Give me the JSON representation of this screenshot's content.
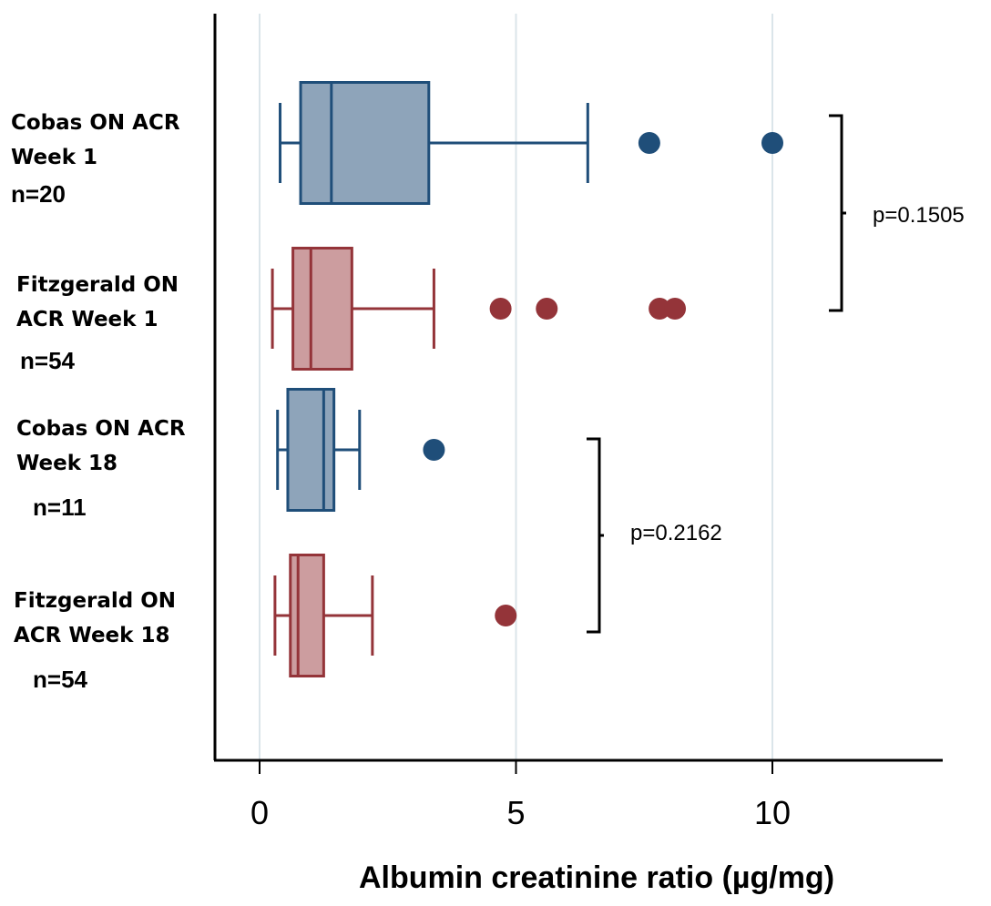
{
  "chart_data": {
    "type": "boxplot",
    "orientation": "horizontal",
    "title": "",
    "xlabel": "Albumin creatinine ratio (µg/mg)",
    "ylabel": "",
    "xlim": [
      -0.85,
      13.3
    ],
    "xticks": [
      0,
      5,
      10
    ],
    "grid": true,
    "colors": {
      "cobas_stroke": "#1f4e79",
      "cobas_fill": "#8ea4ba",
      "fitzgerald_stroke": "#943439",
      "fitzgerald_fill": "#cc9d9f",
      "grid": "#dbe5ea"
    },
    "categories": [
      {
        "label_lines": [
          "Cobas ON ACR",
          "Week 1"
        ],
        "n": "n=20",
        "color_key": "cobas",
        "whisker_low": 0.4,
        "q1": 0.8,
        "median": 1.4,
        "q3": 3.3,
        "whisker_high": 6.4,
        "outliers": [
          7.6,
          10.0
        ]
      },
      {
        "label_lines": [
          "Fitzgerald ON",
          "ACR Week 1"
        ],
        "n": "n=54",
        "color_key": "fitzgerald",
        "whisker_low": 0.25,
        "q1": 0.65,
        "median": 1.0,
        "q3": 1.8,
        "whisker_high": 3.4,
        "outliers": [
          4.7,
          5.6,
          7.8,
          8.1
        ]
      },
      {
        "label_lines": [
          "Cobas ON ACR",
          "Week 18"
        ],
        "n": "n=11",
        "color_key": "cobas",
        "whisker_low": 0.35,
        "q1": 0.55,
        "median": 1.25,
        "q3": 1.45,
        "whisker_high": 1.95,
        "outliers": [
          3.4
        ]
      },
      {
        "label_lines": [
          "Fitzgerald ON",
          "ACR Week 18"
        ],
        "n": "n=54",
        "color_key": "fitzgerald",
        "whisker_low": 0.3,
        "q1": 0.6,
        "median": 0.75,
        "q3": 1.25,
        "whisker_high": 2.2,
        "outliers": [
          4.8
        ]
      }
    ],
    "comparisons": [
      {
        "between": [
          0,
          1
        ],
        "label": "p=0.1505"
      },
      {
        "between": [
          2,
          3
        ],
        "label": "p=0.2162"
      }
    ]
  }
}
